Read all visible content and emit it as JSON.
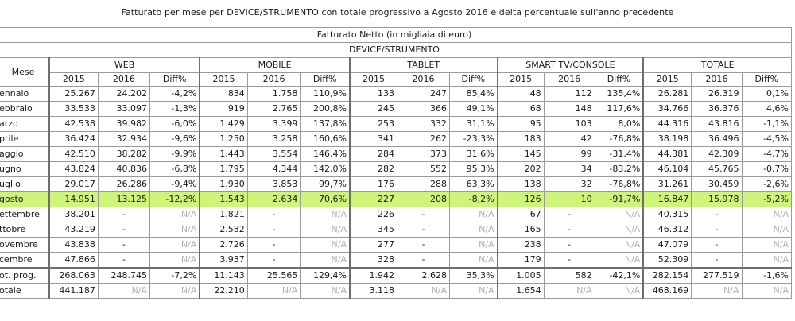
{
  "title": "Fatturato per mese per DEVICE/STRUMENTO con totale progressivo a Agosto 2016 e delta percentuale sull'anno precedente",
  "header": {
    "revenue_label": "Fatturato Netto (in migliaia di euro)",
    "device_label": "DEVICE/STRUMENTO",
    "month_col": "Mese",
    "groups": [
      "WEB",
      "MOBILE",
      "TABLET",
      "SMART TV/CONSOLE",
      "TOTALE"
    ],
    "subcols": [
      "2015",
      "2016",
      "Diff%"
    ]
  },
  "highlight_color": "#ccf57a",
  "rows": [
    {
      "label": "ennaio",
      "cells": [
        "25.267",
        "24.202",
        "-4,2%",
        "834",
        "1.758",
        "110,9%",
        "133",
        "247",
        "85,4%",
        "48",
        "112",
        "135,4%",
        "26.281",
        "26.319",
        "0,1%"
      ]
    },
    {
      "label": "ebbraio",
      "cells": [
        "33.533",
        "33.097",
        "-1,3%",
        "919",
        "2.765",
        "200,8%",
        "245",
        "366",
        "49,1%",
        "68",
        "148",
        "117,6%",
        "34.766",
        "36.376",
        "4,6%"
      ]
    },
    {
      "label": "arzo",
      "cells": [
        "42.538",
        "39.982",
        "-6,0%",
        "1.429",
        "3.399",
        "137,8%",
        "253",
        "332",
        "31,1%",
        "95",
        "103",
        "8,0%",
        "44.316",
        "43.816",
        "-1,1%"
      ]
    },
    {
      "label": "prile",
      "cells": [
        "36.424",
        "32.934",
        "-9,6%",
        "1.250",
        "3.258",
        "160,6%",
        "341",
        "262",
        "-23,3%",
        "183",
        "42",
        "-76,8%",
        "38.198",
        "36.496",
        "-4,5%"
      ]
    },
    {
      "label": "aggio",
      "cells": [
        "42.510",
        "38.282",
        "-9,9%",
        "1.443",
        "3.554",
        "146,4%",
        "284",
        "373",
        "31,6%",
        "145",
        "99",
        "-31,4%",
        "44.381",
        "42.309",
        "-4,7%"
      ]
    },
    {
      "label": "ugno",
      "cells": [
        "43.824",
        "40.836",
        "-6,8%",
        "1.795",
        "4.344",
        "142,0%",
        "282",
        "552",
        "95,3%",
        "202",
        "34",
        "-83,2%",
        "46.104",
        "45.765",
        "-0,7%"
      ]
    },
    {
      "label": "uglio",
      "cells": [
        "29.017",
        "26.286",
        "-9,4%",
        "1.930",
        "3.853",
        "99,7%",
        "176",
        "288",
        "63,3%",
        "138",
        "32",
        "-76,8%",
        "31.261",
        "30.459",
        "-2,6%"
      ]
    },
    {
      "label": "gosto",
      "highlight": true,
      "cells": [
        "14.951",
        "13.125",
        "-12,2%",
        "1.543",
        "2.634",
        "70,6%",
        "227",
        "208",
        "-8,2%",
        "126",
        "10",
        "-91,7%",
        "16.847",
        "15.978",
        "-5,2%"
      ]
    },
    {
      "label": "ettembre",
      "cells": [
        "38.201",
        "-",
        "N/A",
        "1.821",
        "-",
        "N/A",
        "226",
        "-",
        "N/A",
        "67",
        "-",
        "N/A",
        "40.315",
        "-",
        "N/A"
      ]
    },
    {
      "label": "ttobre",
      "cells": [
        "43.219",
        "-",
        "N/A",
        "2.582",
        "-",
        "N/A",
        "345",
        "-",
        "N/A",
        "165",
        "-",
        "N/A",
        "46.312",
        "-",
        "N/A"
      ]
    },
    {
      "label": "ovembre",
      "cells": [
        "43.838",
        "-",
        "N/A",
        "2.726",
        "-",
        "N/A",
        "277",
        "-",
        "N/A",
        "238",
        "-",
        "N/A",
        "47.079",
        "-",
        "N/A"
      ]
    },
    {
      "label": "cembre",
      "cells": [
        "47.866",
        "-",
        "N/A",
        "3.937",
        "-",
        "N/A",
        "328",
        "-",
        "N/A",
        "179",
        "-",
        "N/A",
        "52.309",
        "-",
        "N/A"
      ]
    },
    {
      "label": "ot. prog.",
      "separator": true,
      "cells": [
        "268.063",
        "248.745",
        "-7,2%",
        "11.143",
        "25.565",
        "129,4%",
        "1.942",
        "2.628",
        "35,3%",
        "1.005",
        "582",
        "-42,1%",
        "282.154",
        "277.519",
        "-1,6%"
      ]
    },
    {
      "label": "otale",
      "cells": [
        "441.187",
        "N/A",
        "N/A",
        "22.210",
        "N/A",
        "N/A",
        "3.118",
        "N/A",
        "N/A",
        "1.654",
        "N/A",
        "N/A",
        "468.169",
        "N/A",
        "N/A"
      ]
    }
  ]
}
